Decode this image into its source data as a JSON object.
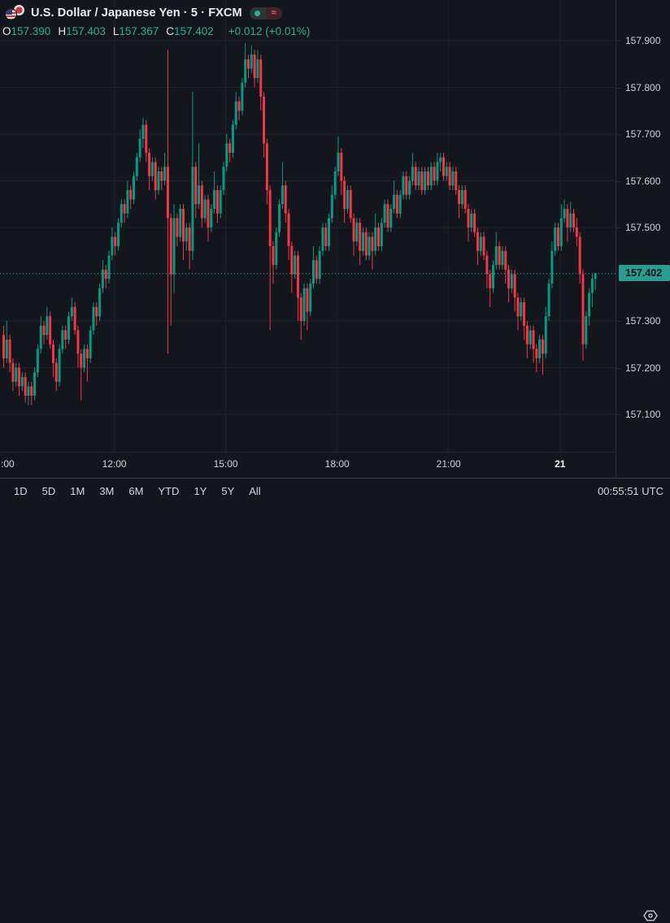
{
  "header": {
    "title": "U.S. Dollar / Japanese Yen · 5 · FXCM",
    "flag_icon": "us-jpy-flags-icon",
    "badges": [
      {
        "name": "market-status-dot",
        "glyph": ""
      },
      {
        "name": "delayed-data-badge",
        "glyph": "≈"
      }
    ],
    "ohlc": [
      {
        "label": "O",
        "value": "157.390"
      },
      {
        "label": "H",
        "value": "157.403"
      },
      {
        "label": "L",
        "value": "157.367"
      },
      {
        "label": "C",
        "value": "157.402"
      }
    ],
    "change": "+0.012 (+0.01%)"
  },
  "colors": {
    "up": "#089981",
    "down": "#f23645",
    "accent": "#26a69a",
    "price_label_bg": "#2a9d8f",
    "grid": "#1e222b",
    "background": "#14161d"
  },
  "price_axis": {
    "tick_labels": [
      "157.900",
      "157.800",
      "157.700",
      "157.600",
      "157.500",
      "157.300",
      "157.200",
      "157.100"
    ],
    "tick_values": [
      157.9,
      157.8,
      157.7,
      157.6,
      157.5,
      157.3,
      157.2,
      157.1
    ],
    "grid_values": [
      157.9,
      157.8,
      157.7,
      157.6,
      157.5,
      157.4,
      157.3,
      157.2,
      157.1
    ],
    "current_label": "157.402"
  },
  "time_axis": {
    "labels": [
      {
        "text": ":00",
        "edge": true
      },
      {
        "text": "12:00"
      },
      {
        "text": "15:00"
      },
      {
        "text": "18:00"
      },
      {
        "text": "21:00"
      },
      {
        "text": "21",
        "emphasis": true
      }
    ],
    "settings_icon": "hexagon-settings-icon"
  },
  "toolbar": {
    "ranges": [
      "1D",
      "5D",
      "1M",
      "3M",
      "6M",
      "YTD",
      "1Y",
      "5Y",
      "All"
    ],
    "clock": "00:55:51 UTC"
  },
  "chart_data": {
    "type": "candlestick",
    "symbol": "U.S. Dollar / Japanese Yen",
    "interval": "5",
    "exchange": "FXCM",
    "current_price": 157.402,
    "change": 0.012,
    "change_pct": 0.01,
    "y_axis_range": [
      157.06,
      157.96
    ],
    "x_axis_labels": [
      ":00",
      "12:00",
      "15:00",
      "18:00",
      "21:00",
      "21"
    ],
    "grid": true,
    "candles": [
      [
        157.27,
        157.29,
        157.2,
        157.22
      ],
      [
        157.22,
        157.3,
        157.21,
        157.26
      ],
      [
        157.26,
        157.27,
        157.19,
        157.21
      ],
      [
        157.21,
        157.22,
        157.15,
        157.17
      ],
      [
        157.17,
        157.21,
        157.16,
        157.2
      ],
      [
        157.2,
        157.21,
        157.14,
        157.16
      ],
      [
        157.16,
        157.19,
        157.15,
        157.18
      ],
      [
        157.18,
        157.19,
        157.125,
        157.14
      ],
      [
        157.14,
        157.17,
        157.12,
        157.16
      ],
      [
        157.16,
        157.17,
        157.12,
        157.14
      ],
      [
        157.14,
        157.2,
        157.13,
        157.19
      ],
      [
        157.19,
        157.25,
        157.18,
        157.24
      ],
      [
        157.24,
        157.31,
        157.23,
        157.29
      ],
      [
        157.29,
        157.3,
        157.25,
        157.27
      ],
      [
        157.27,
        157.33,
        157.26,
        157.31
      ],
      [
        157.31,
        157.32,
        157.24,
        157.25
      ],
      [
        157.25,
        157.26,
        157.18,
        157.21
      ],
      [
        157.21,
        157.22,
        157.15,
        157.17
      ],
      [
        157.17,
        157.25,
        157.16,
        157.24
      ],
      [
        157.24,
        157.29,
        157.23,
        157.28
      ],
      [
        157.28,
        157.29,
        157.24,
        157.26
      ],
      [
        157.26,
        157.32,
        157.25,
        157.31
      ],
      [
        157.31,
        157.35,
        157.3,
        157.33
      ],
      [
        157.33,
        157.34,
        157.27,
        157.28
      ],
      [
        157.28,
        157.29,
        157.2,
        157.23
      ],
      [
        157.23,
        157.24,
        157.13,
        157.2
      ],
      [
        157.2,
        157.25,
        157.19,
        157.24
      ],
      [
        157.24,
        157.25,
        157.17,
        157.22
      ],
      [
        157.22,
        157.29,
        157.21,
        157.28
      ],
      [
        157.28,
        157.34,
        157.27,
        157.33
      ],
      [
        157.33,
        157.34,
        157.29,
        157.31
      ],
      [
        157.31,
        157.38,
        157.3,
        157.37
      ],
      [
        157.37,
        157.43,
        157.36,
        157.41
      ],
      [
        157.41,
        157.42,
        157.37,
        157.39
      ],
      [
        157.39,
        157.45,
        157.38,
        157.44
      ],
      [
        157.44,
        157.5,
        157.43,
        157.48
      ],
      [
        157.48,
        157.49,
        157.44,
        157.46
      ],
      [
        157.46,
        157.52,
        157.45,
        157.51
      ],
      [
        157.51,
        157.56,
        157.5,
        157.55
      ],
      [
        157.55,
        157.56,
        157.51,
        157.53
      ],
      [
        157.53,
        157.6,
        157.52,
        157.58
      ],
      [
        157.58,
        157.59,
        157.54,
        157.56
      ],
      [
        157.56,
        157.62,
        157.55,
        157.61
      ],
      [
        157.61,
        157.66,
        157.6,
        157.65
      ],
      [
        157.65,
        157.71,
        157.64,
        157.69
      ],
      [
        157.69,
        157.735,
        157.67,
        157.72
      ],
      [
        157.72,
        157.73,
        157.64,
        157.66
      ],
      [
        157.66,
        157.67,
        157.58,
        157.61
      ],
      [
        157.61,
        157.65,
        157.6,
        157.64
      ],
      [
        157.64,
        157.65,
        157.56,
        157.58
      ],
      [
        157.58,
        157.63,
        157.57,
        157.62
      ],
      [
        157.62,
        157.63,
        157.58,
        157.6
      ],
      [
        157.6,
        157.66,
        157.59,
        157.63
      ],
      [
        157.63,
        157.88,
        157.23,
        157.52
      ],
      [
        157.52,
        157.53,
        157.29,
        157.4
      ],
      [
        157.4,
        157.55,
        157.36,
        157.52
      ],
      [
        157.52,
        157.53,
        157.46,
        157.48
      ],
      [
        157.48,
        157.55,
        157.47,
        157.54
      ],
      [
        157.54,
        157.55,
        157.43,
        157.47
      ],
      [
        157.47,
        157.51,
        157.45,
        157.5
      ],
      [
        157.5,
        157.51,
        157.41,
        157.45
      ],
      [
        157.45,
        157.79,
        157.43,
        157.63
      ],
      [
        157.63,
        157.64,
        157.52,
        157.55
      ],
      [
        157.55,
        157.68,
        157.54,
        157.59
      ],
      [
        157.59,
        157.6,
        157.5,
        157.52
      ],
      [
        157.52,
        157.57,
        157.51,
        157.56
      ],
      [
        157.56,
        157.57,
        157.47,
        157.5
      ],
      [
        157.5,
        157.55,
        157.49,
        157.54
      ],
      [
        157.54,
        157.62,
        157.53,
        157.58
      ],
      [
        157.58,
        157.59,
        157.51,
        157.53
      ],
      [
        157.53,
        157.59,
        157.52,
        157.58
      ],
      [
        157.58,
        157.64,
        157.57,
        157.63
      ],
      [
        157.63,
        157.7,
        157.62,
        157.68
      ],
      [
        157.68,
        157.69,
        157.64,
        157.66
      ],
      [
        157.66,
        157.73,
        157.65,
        157.72
      ],
      [
        157.72,
        157.79,
        157.71,
        157.77
      ],
      [
        157.77,
        157.78,
        157.73,
        157.75
      ],
      [
        157.75,
        157.82,
        157.74,
        157.81
      ],
      [
        157.81,
        157.895,
        157.8,
        157.86
      ],
      [
        157.86,
        157.87,
        157.82,
        157.84
      ],
      [
        157.84,
        157.89,
        157.83,
        157.87
      ],
      [
        157.87,
        157.88,
        157.8,
        157.82
      ],
      [
        157.82,
        157.88,
        157.81,
        157.86
      ],
      [
        157.86,
        157.87,
        157.75,
        157.78
      ],
      [
        157.78,
        157.79,
        157.65,
        157.68
      ],
      [
        157.68,
        157.69,
        157.55,
        157.58
      ],
      [
        157.58,
        157.59,
        157.28,
        157.46
      ],
      [
        157.46,
        157.47,
        157.38,
        157.42
      ],
      [
        157.42,
        157.5,
        157.41,
        157.49
      ],
      [
        157.49,
        157.56,
        157.48,
        157.55
      ],
      [
        157.55,
        157.64,
        157.54,
        157.59
      ],
      [
        157.59,
        157.6,
        157.51,
        157.53
      ],
      [
        157.53,
        157.54,
        157.43,
        157.46
      ],
      [
        157.46,
        157.47,
        157.36,
        157.4
      ],
      [
        157.4,
        157.45,
        157.39,
        157.44
      ],
      [
        157.44,
        157.45,
        157.3,
        157.35
      ],
      [
        157.35,
        157.36,
        157.26,
        157.3
      ],
      [
        157.3,
        157.38,
        157.29,
        157.37
      ],
      [
        157.37,
        157.38,
        157.28,
        157.32
      ],
      [
        157.32,
        157.39,
        157.31,
        157.38
      ],
      [
        157.38,
        157.46,
        157.37,
        157.43
      ],
      [
        157.43,
        157.44,
        157.38,
        157.39
      ],
      [
        157.39,
        157.46,
        157.38,
        157.45
      ],
      [
        157.45,
        157.51,
        157.44,
        157.5
      ],
      [
        157.5,
        157.51,
        157.45,
        157.46
      ],
      [
        157.46,
        157.53,
        157.45,
        157.52
      ],
      [
        157.52,
        157.59,
        157.51,
        157.57
      ],
      [
        157.57,
        157.63,
        157.56,
        157.62
      ],
      [
        157.62,
        157.695,
        157.61,
        157.66
      ],
      [
        157.66,
        157.67,
        157.57,
        157.6
      ],
      [
        157.6,
        157.61,
        157.51,
        157.54
      ],
      [
        157.54,
        157.59,
        157.53,
        157.58
      ],
      [
        157.58,
        157.59,
        157.51,
        157.52
      ],
      [
        157.52,
        157.53,
        157.44,
        157.47
      ],
      [
        157.47,
        157.52,
        157.46,
        157.51
      ],
      [
        157.51,
        157.52,
        157.42,
        157.45
      ],
      [
        157.45,
        157.5,
        157.44,
        157.49
      ],
      [
        157.49,
        157.5,
        157.43,
        157.44
      ],
      [
        157.44,
        157.49,
        157.43,
        157.48
      ],
      [
        157.48,
        157.49,
        157.41,
        157.45
      ],
      [
        157.45,
        157.53,
        157.44,
        157.5
      ],
      [
        157.5,
        157.51,
        157.45,
        157.46
      ],
      [
        157.46,
        157.52,
        157.45,
        157.51
      ],
      [
        157.51,
        157.56,
        157.5,
        157.55
      ],
      [
        157.55,
        157.56,
        157.49,
        157.5
      ],
      [
        157.5,
        157.55,
        157.49,
        157.54
      ],
      [
        157.54,
        157.6,
        157.53,
        157.57
      ],
      [
        157.57,
        157.58,
        157.52,
        157.53
      ],
      [
        157.53,
        157.58,
        157.52,
        157.57
      ],
      [
        157.57,
        157.62,
        157.56,
        157.61
      ],
      [
        157.61,
        157.62,
        157.56,
        157.57
      ],
      [
        157.57,
        157.61,
        157.56,
        157.6
      ],
      [
        157.6,
        157.66,
        157.59,
        157.63
      ],
      [
        157.63,
        157.64,
        157.58,
        157.59
      ],
      [
        157.59,
        157.63,
        157.58,
        157.62
      ],
      [
        157.62,
        157.63,
        157.57,
        157.58
      ],
      [
        157.58,
        157.63,
        157.57,
        157.62
      ],
      [
        157.62,
        157.63,
        157.58,
        157.59
      ],
      [
        157.59,
        157.64,
        157.58,
        157.63
      ],
      [
        157.63,
        157.64,
        157.59,
        157.6
      ],
      [
        157.6,
        157.66,
        157.59,
        157.64
      ],
      [
        157.64,
        157.66,
        157.62,
        157.65
      ],
      [
        157.65,
        157.66,
        157.6,
        157.61
      ],
      [
        157.61,
        157.64,
        157.6,
        157.63
      ],
      [
        157.63,
        157.64,
        157.58,
        157.59
      ],
      [
        157.59,
        157.63,
        157.58,
        157.62
      ],
      [
        157.62,
        157.63,
        157.57,
        157.58
      ],
      [
        157.58,
        157.59,
        157.52,
        157.55
      ],
      [
        157.55,
        157.59,
        157.54,
        157.58
      ],
      [
        157.58,
        157.59,
        157.53,
        157.54
      ],
      [
        157.54,
        157.55,
        157.47,
        157.5
      ],
      [
        157.5,
        157.54,
        157.49,
        157.53
      ],
      [
        157.53,
        157.54,
        157.48,
        157.49
      ],
      [
        157.49,
        157.5,
        157.42,
        157.45
      ],
      [
        157.45,
        157.49,
        157.44,
        157.48
      ],
      [
        157.48,
        157.49,
        157.43,
        157.44
      ],
      [
        157.44,
        157.45,
        157.37,
        157.4
      ],
      [
        157.4,
        157.41,
        157.33,
        157.37
      ],
      [
        157.37,
        157.43,
        157.36,
        157.42
      ],
      [
        157.42,
        157.49,
        157.41,
        157.46
      ],
      [
        157.46,
        157.47,
        157.41,
        157.42
      ],
      [
        157.42,
        157.46,
        157.41,
        157.45
      ],
      [
        157.45,
        157.46,
        157.38,
        157.41
      ],
      [
        157.41,
        157.42,
        157.34,
        157.37
      ],
      [
        157.37,
        157.41,
        157.36,
        157.4
      ],
      [
        157.4,
        157.41,
        157.32,
        157.35
      ],
      [
        157.35,
        157.36,
        157.28,
        157.31
      ],
      [
        157.31,
        157.35,
        157.3,
        157.34
      ],
      [
        157.34,
        157.35,
        157.26,
        157.29
      ],
      [
        157.29,
        157.3,
        157.22,
        157.25
      ],
      [
        157.25,
        157.29,
        157.24,
        157.28
      ],
      [
        157.28,
        157.29,
        157.21,
        157.24
      ],
      [
        157.24,
        157.25,
        157.19,
        157.22
      ],
      [
        157.22,
        157.27,
        157.21,
        157.26
      ],
      [
        157.26,
        157.27,
        157.185,
        157.23
      ],
      [
        157.23,
        157.33,
        157.22,
        157.31
      ],
      [
        157.31,
        157.39,
        157.3,
        157.38
      ],
      [
        157.38,
        157.47,
        157.37,
        157.45
      ],
      [
        157.45,
        157.51,
        157.44,
        157.5
      ],
      [
        157.5,
        157.51,
        157.45,
        157.46
      ],
      [
        157.46,
        157.55,
        157.45,
        157.52
      ],
      [
        157.52,
        157.56,
        157.51,
        157.54
      ],
      [
        157.54,
        157.55,
        157.47,
        157.5
      ],
      [
        157.5,
        157.555,
        157.49,
        157.53
      ],
      [
        157.53,
        157.54,
        157.49,
        157.5
      ],
      [
        157.5,
        157.52,
        157.46,
        157.48
      ],
      [
        157.48,
        157.49,
        157.38,
        157.4
      ],
      [
        157.4,
        157.41,
        157.215,
        157.25
      ],
      [
        157.25,
        157.32,
        157.24,
        157.31
      ],
      [
        157.31,
        157.37,
        157.29,
        157.36
      ],
      [
        157.36,
        157.4,
        157.33,
        157.39
      ],
      [
        157.39,
        157.403,
        157.367,
        157.402
      ]
    ]
  }
}
